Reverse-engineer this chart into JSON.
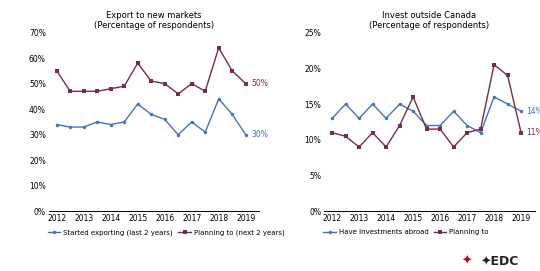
{
  "left_title": "Export to new markets\n(Percentage of respondents)",
  "right_title": "Invest outside Canada\n(Percentage of respondents)",
  "years": [
    2012,
    2012.5,
    2013,
    2013.5,
    2014,
    2014.5,
    2015,
    2015.5,
    2016,
    2016.5,
    2017,
    2017.5,
    2018,
    2018.5,
    2019
  ],
  "left_blue": [
    34,
    33,
    33,
    35,
    34,
    35,
    42,
    38,
    36,
    30,
    35,
    31,
    44,
    38,
    30
  ],
  "left_red": [
    55,
    47,
    47,
    47,
    48,
    49,
    58,
    51,
    50,
    46,
    50,
    47,
    64,
    55,
    50
  ],
  "right_blue": [
    13,
    15,
    13,
    15,
    13,
    15,
    14,
    12,
    12,
    14,
    12,
    11,
    16,
    15,
    14
  ],
  "right_red": [
    11,
    10.5,
    9,
    11,
    9,
    12,
    16,
    11.5,
    11.5,
    9,
    11,
    11.5,
    20.5,
    19,
    11
  ],
  "left_ylim": [
    0,
    70
  ],
  "left_yticks": [
    0,
    10,
    20,
    30,
    40,
    50,
    60,
    70
  ],
  "right_ylim": [
    0,
    25
  ],
  "right_yticks": [
    0,
    5,
    10,
    15,
    20,
    25
  ],
  "blue_color": "#4472C4",
  "red_color": "#7B2C45",
  "left_legend": [
    "Started exporting (last 2 years)",
    "Planning to (next 2 years)"
  ],
  "right_legend": [
    "Have investments abroad",
    "Planning to"
  ],
  "left_end_labels": [
    "30%",
    "50%"
  ],
  "right_end_labels": [
    "14%",
    "11%"
  ],
  "edc_star_color": "#CC0000",
  "edc_text_color": "#222222"
}
